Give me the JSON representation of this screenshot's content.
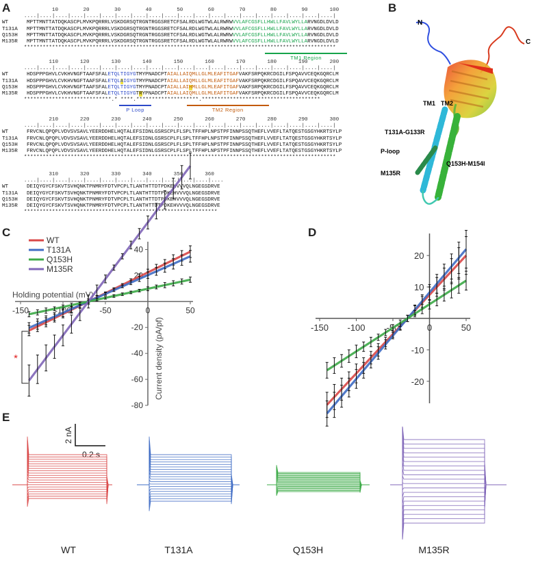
{
  "panels": {
    "A": "A",
    "B": "B",
    "C": "C",
    "D": "D",
    "E": "E"
  },
  "alignment": {
    "names": [
      "WT",
      "T131A",
      "Q153H",
      "M135R"
    ],
    "blocks": [
      {
        "ruler": "         10        20        30        40        50        60        70        80        90       100",
        "dots": "....|....|....|....|....|....|....|....|....|....|....|....|....|....|....|....|....|....|....|....|",
        "rows": [
          [
            {
              "t": "MPTTMNTTATDQKASCPLMVKPQRRRLVSKDGRSQTRGNTRGGSRETCFSALRDLWGTWLALRWRW"
            },
            {
              "t": "VVLAFCGSFLLHWLLFAVLWYLLA",
              "c": "g"
            },
            {
              "t": "RVNGDLDVLD"
            }
          ],
          [
            {
              "t": "MPTTMNTTATDQKASCPLMVKPQRRRLVSKDGRSQTRGNTRGGSRETCFSALRDLWGTWLALRWRW"
            },
            {
              "t": "VVLAFCGSFLLHWLLFAVLWYLLA",
              "c": "g"
            },
            {
              "t": "RVNGDLDVLD"
            }
          ],
          [
            {
              "t": "MPTTMNTTATDQKASCPLMVKPQRRRLVSKDGRSQTRGNTRGGSRETCFSALRDLWGTWLALRWRW"
            },
            {
              "t": "VVLAFCGSFLLHWLLFAVLWYLLA",
              "c": "g"
            },
            {
              "t": "RVNGDLDVLD"
            }
          ],
          [
            {
              "t": "MPTTMNTTATDQKASCPLMVKPQRRRLVSKDGRSQTRGNTRGGSRETCFSALRDLWGTWLALRWRW"
            },
            {
              "t": "VVLAFCGSFLLHWLLFAVLWYLLA",
              "c": "g"
            },
            {
              "t": "RVNGDLDVLD"
            }
          ]
        ],
        "cons": "****************************************************************************************************",
        "region": {
          "label": "TM1 Region",
          "color": "#16a34a",
          "start": 67,
          "end": 90
        }
      },
      {
        "ruler": "        110       120       130       140       150       160       170       180       190       200",
        "dots": "....|....|....|....|....|....|....|....|....|....|....|....|....|....|....|....|....|....|....|....|",
        "rows": [
          [
            {
              "t": "HDSPPPGHVLCVKHVNGFTAAFSFAL"
            },
            {
              "t": "ETQLTIGYG",
              "c": "b"
            },
            {
              "t": "TMYPNADCPT"
            },
            {
              "t": "AIALLAIQMLLGLMLEAFITGAF",
              "c": "o"
            },
            {
              "t": "VAKFSRPQKRCDGILFSPQAVVCEQKGQRCLM"
            }
          ],
          [
            {
              "t": "HDSPPPGHVLCVKHVNGFTAAFSFAL"
            },
            {
              "t": "ETQL",
              "c": "b"
            },
            {
              "t": "A",
              "c": "b",
              "h": 1
            },
            {
              "t": "IGYG",
              "c": "b"
            },
            {
              "t": "TMYPNADCPT"
            },
            {
              "t": "AIALLAIQMLLGLMLEAFITGAF",
              "c": "o"
            },
            {
              "t": "VAKFSRPQKRCDGILFSPQAVVCEQKGQRCLM"
            }
          ],
          [
            {
              "t": "HDSPPPGHVLCVKHVNGFTAAFSFAL"
            },
            {
              "t": "ETQLTIGYG",
              "c": "b"
            },
            {
              "t": "TMYPNADCPT"
            },
            {
              "t": "AIALLAI",
              "c": "o"
            },
            {
              "t": "H",
              "c": "o",
              "h": 1
            },
            {
              "t": "MLLGLMLEAFITGAF",
              "c": "o"
            },
            {
              "t": "VAKFSRPQKRCDGILFSPQAVVCEQKGQRCLM"
            }
          ],
          [
            {
              "t": "HDSPPPGHVLCVKHVNGFTAAFSFAL"
            },
            {
              "t": "ETQLTIGYG",
              "c": "b"
            },
            {
              "t": "T"
            },
            {
              "t": "R",
              "h": 1
            },
            {
              "t": "YPNADCPT"
            },
            {
              "t": "AIALLAIQMLLGLMLEAFITGAF",
              "c": "o"
            },
            {
              "t": "VAKFSRPQKRCDGILFSPQAVVCEQKGQRCLM"
            }
          ]
        ],
        "cons": "****************************.* ****.********************.**************************************",
        "region": null
      },
      {
        "ruler": "        210       220       230       240       250       260       270       280       290       300",
        "dots": "....|....|....|....|....|....|....|....|....|....|....|....|....|....|....|....|....|....|....|....|",
        "rows": [
          [
            {
              "t": "FRVCNLQPQPLVDVSVSAVLYEERDDHELHQTALEFSIDNLGSRSCPLFLSPLTFFHPLNPSTPFINNPSSQTHEFLVVEFLTATQESTGSGYHKRTSYLP"
            }
          ],
          [
            {
              "t": "FRVCNLQPQPLVDVSVSAVLYEERDDHELHQTALEFSIDNLGSRSCPLFLSPLTFFHPLNPSTPFINNPSSQTHEFLVVEFLTATQESTGSGYHKRTSYLP"
            }
          ],
          [
            {
              "t": "FRVCNLQPQPLVDVSVSAVLYEERDDHELHQTALEFSIDNLGSRSCPLFLSPLTFFHPLNPSTPFINNPSSQTHEFLVVEFLTATQESTGSGYHKRTSYLP"
            }
          ],
          [
            {
              "t": "FRVCNLQPQPLVDVSVSAVLYEERDDHELHQTALEFSIDNLGSRSCPLFLSPLTFFHPLNPSTPFINNPSSQTHEFLVVEFLTATQESTGSGYHKRTSYLP"
            }
          ]
        ],
        "cons": "****************************************************************************************************",
        "region": null
      },
      {
        "ruler": "        310       320       330       340       350       360",
        "dots": "....|....|....|....|....|....|....|....|....|....|....|....|....",
        "rows": [
          [
            {
              "t": "DEIQYGYCFSKVTSVHQNKTPNMRYFDTVPCPLTLANTHTTDTPDKEHVVVQLNGEGSDRVE"
            }
          ],
          [
            {
              "t": "DEIQYGYCFSKVTSVHQNKTPNMRYFDTVPCPLTLANTHTTDTPDKEHVVVQLNGEGSDRVE"
            }
          ],
          [
            {
              "t": "DEIQYGYCFSKVTSVHQNKTPNMRYFDTVPCPLTLANTHTTDTPDKEHVVVQLNGEGSDRVE"
            }
          ],
          [
            {
              "t": "DEIQYGYCFSKVTSVHQNKTPNMRYFDTVPCPLTLANTHTTDTPDKEHVVVQLNGEGSDRVE"
            }
          ]
        ],
        "cons": "**************************************************************",
        "region": null
      }
    ],
    "region_labels": {
      "tm1": "TM1 Region",
      "ploop": "P Loop",
      "tm2": "TM2 Region"
    }
  },
  "structure": {
    "labels": {
      "n_term": "N",
      "c_term": "C",
      "tm1": "TM1",
      "tm2": "TM2",
      "mut1": "T131A-G133R",
      "ploop": "P-loop",
      "mut2": "M135R",
      "mut3": "Q153H-M154I"
    }
  },
  "colors": {
    "WT": "#d94848",
    "T131A": "#3f6cc4",
    "Q153H": "#3daa48",
    "M135R": "#8066b8",
    "sig": "#e02020"
  },
  "chart_data": [
    {
      "type": "line",
      "panel": "C",
      "xlabel": "Holding potential (mV)",
      "ylabel": "Current density (pA/pf)",
      "x_ticks": [
        -150,
        -100,
        -50,
        0,
        50
      ],
      "x_tick_labels": [
        "-150",
        "-100",
        "-50",
        "0",
        "50"
      ],
      "y_ticks": [
        -80,
        -60,
        -40,
        -20,
        20,
        40
      ],
      "y_tick_labels": [
        "-80",
        "-60",
        "-40",
        "-20",
        "20",
        "40"
      ],
      "xlim": [
        -150,
        50
      ],
      "ylim": [
        -80,
        45
      ],
      "legend": [
        "WT",
        "T131A",
        "Q153H",
        "M135R"
      ],
      "legend_position": "top-left",
      "significance": "*",
      "x": [
        -140,
        -130,
        -120,
        -110,
        -100,
        -90,
        -80,
        -70,
        -60,
        -50,
        -40,
        -30,
        -20,
        -10,
        0,
        10,
        20,
        30,
        40,
        50
      ],
      "series": [
        {
          "name": "WT",
          "a": -70,
          "b": 0.32,
          "err": [
            4,
            4,
            3.5,
            3,
            3,
            2.5,
            2,
            2,
            1.5,
            1,
            1,
            1,
            1.5,
            2,
            2.5,
            3,
            3.5,
            4,
            4,
            4.5
          ]
        },
        {
          "name": "T131A",
          "a": -70,
          "b": 0.29,
          "err": [
            4,
            4,
            3.5,
            3,
            3,
            2.5,
            2,
            2,
            1.5,
            1,
            1,
            1,
            1.5,
            2,
            2.5,
            3,
            3.5,
            4,
            4,
            4.5
          ]
        },
        {
          "name": "Q153H",
          "a": -70,
          "b": 0.14,
          "err": [
            2,
            2,
            2,
            1.5,
            1.5,
            1.5,
            1,
            1,
            1,
            1,
            1,
            1,
            1,
            1,
            1.5,
            1.5,
            2,
            2,
            2,
            2
          ]
        },
        {
          "name": "M135R",
          "a": -70,
          "b": 0.87,
          "err": [
            12,
            11,
            10,
            9,
            8,
            7,
            6,
            5,
            4,
            3,
            2,
            2,
            3,
            4,
            5,
            6,
            7,
            8,
            9,
            10
          ]
        }
      ]
    },
    {
      "type": "line",
      "panel": "D",
      "x_ticks": [
        -150,
        -100,
        -50,
        0,
        50
      ],
      "x_tick_labels": [
        "-150",
        "-100",
        "-50",
        "0",
        "50"
      ],
      "y_ticks": [
        -20,
        -10,
        10,
        20
      ],
      "y_tick_labels": [
        "-20",
        "-10",
        "10",
        "20"
      ],
      "xlim": [
        -150,
        50
      ],
      "ylim": [
        -27,
        27
      ],
      "x": [
        -140,
        -130,
        -120,
        -110,
        -100,
        -90,
        -80,
        -70,
        -60,
        -50,
        -40,
        -30,
        -20,
        -10,
        0,
        10,
        20,
        30,
        40,
        50
      ],
      "series": [
        {
          "name": "WT",
          "a": -30,
          "b": 0.25,
          "err": [
            4,
            4,
            3.5,
            3,
            3,
            2.5,
            2,
            2,
            1.5,
            1,
            1,
            1,
            1.5,
            2,
            2.5,
            3,
            3.5,
            4,
            5,
            6
          ]
        },
        {
          "name": "T131A",
          "a": -30,
          "b": 0.275,
          "err": [
            4,
            4,
            3.5,
            3,
            3,
            2.5,
            2,
            2,
            1.5,
            1,
            1,
            1,
            1.5,
            2,
            2.5,
            3,
            3.5,
            4,
            5,
            6
          ]
        },
        {
          "name": "Q153H",
          "a": -30,
          "b": 0.15,
          "err": [
            2.5,
            2.5,
            2,
            2,
            2,
            1.5,
            1.5,
            1,
            1,
            1,
            1,
            1,
            1,
            1.5,
            1.5,
            2,
            2,
            2.5,
            2.5,
            3
          ]
        }
      ]
    }
  ],
  "traces": {
    "scale_current": "2 nA",
    "scale_time": "0.2 s",
    "labels": [
      "WT",
      "T131A",
      "Q153H",
      "M135R"
    ],
    "families": [
      {
        "name": "WT",
        "step_count": 20,
        "max_nA": 2.2,
        "min_nA": -1.0
      },
      {
        "name": "T131A",
        "step_count": 20,
        "max_nA": 2.2,
        "min_nA": -1.2
      },
      {
        "name": "Q153H",
        "step_count": 20,
        "max_nA": 0.9,
        "min_nA": -0.5
      },
      {
        "name": "M135R",
        "step_count": 20,
        "max_nA": 3.3,
        "min_nA": -2.8
      }
    ]
  }
}
